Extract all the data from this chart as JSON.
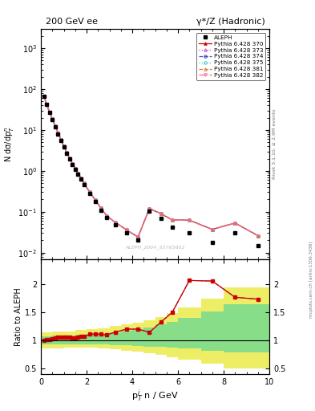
{
  "title_left": "200 GeV ee",
  "title_right": "γ*/Z (Hadronic)",
  "ylabel_main": "N dσ/dp$_T^n$",
  "ylabel_ratio": "Ratio to ALEPH",
  "xlabel": "p$_T^i$ n / GeV",
  "right_label_top": "Rivet 3.1.10, ≥ 2.9M events",
  "right_label_bot": "mcplots.cern.ch [arXiv:1306.3436]",
  "watermark": "ALEPH_2004_S5765862",
  "aleph_x": [
    0.125,
    0.25,
    0.375,
    0.5,
    0.625,
    0.75,
    0.875,
    1.0,
    1.125,
    1.25,
    1.375,
    1.5,
    1.625,
    1.75,
    1.875,
    2.125,
    2.375,
    2.625,
    2.875,
    3.25,
    3.75,
    4.25,
    4.75,
    5.25,
    5.75,
    6.5,
    7.5,
    8.5,
    9.5
  ],
  "aleph_y": [
    68.0,
    42.0,
    27.0,
    18.0,
    12.0,
    8.0,
    5.5,
    3.8,
    2.7,
    1.95,
    1.45,
    1.1,
    0.82,
    0.62,
    0.47,
    0.28,
    0.175,
    0.11,
    0.073,
    0.048,
    0.03,
    0.02,
    0.105,
    0.068,
    0.042,
    0.03,
    0.018,
    0.03,
    0.015
  ],
  "mc_x": [
    0.125,
    0.25,
    0.375,
    0.5,
    0.625,
    0.75,
    0.875,
    1.0,
    1.125,
    1.25,
    1.375,
    1.5,
    1.625,
    1.75,
    1.875,
    2.125,
    2.375,
    2.625,
    2.875,
    3.25,
    3.75,
    4.25,
    4.75,
    5.25,
    5.75,
    6.5,
    7.5,
    8.5,
    9.5
  ],
  "mc_y": [
    68.0,
    42.5,
    27.5,
    18.5,
    12.5,
    8.5,
    5.8,
    4.0,
    2.85,
    2.05,
    1.52,
    1.14,
    0.87,
    0.66,
    0.5,
    0.31,
    0.195,
    0.122,
    0.08,
    0.055,
    0.036,
    0.024,
    0.12,
    0.09,
    0.063,
    0.062,
    0.037,
    0.053,
    0.026
  ],
  "ratio_x": [
    0.125,
    0.25,
    0.375,
    0.5,
    0.625,
    0.75,
    0.875,
    1.0,
    1.125,
    1.25,
    1.375,
    1.5,
    1.625,
    1.75,
    1.875,
    2.125,
    2.375,
    2.625,
    2.875,
    3.25,
    3.75,
    4.25,
    4.75,
    5.25,
    5.75,
    6.5,
    7.5,
    8.5,
    9.5
  ],
  "ratio_y": [
    1.0,
    1.012,
    1.019,
    1.028,
    1.042,
    1.063,
    1.055,
    1.053,
    1.056,
    1.051,
    1.048,
    1.036,
    1.061,
    1.065,
    1.064,
    1.107,
    1.114,
    1.109,
    1.096,
    1.146,
    1.2,
    1.2,
    1.143,
    1.324,
    1.5,
    2.067,
    2.056,
    1.767,
    1.733
  ],
  "band_x_edges": [
    0.0,
    0.5,
    1.0,
    1.5,
    2.0,
    2.5,
    3.0,
    3.5,
    4.0,
    4.5,
    5.0,
    5.5,
    6.0,
    7.0,
    8.0,
    10.0
  ],
  "band_green_lo": [
    0.93,
    0.93,
    0.93,
    0.93,
    0.93,
    0.93,
    0.92,
    0.91,
    0.9,
    0.89,
    0.88,
    0.87,
    0.86,
    0.82,
    0.78,
    0.74
  ],
  "band_green_hi": [
    1.07,
    1.08,
    1.09,
    1.1,
    1.11,
    1.12,
    1.14,
    1.17,
    1.2,
    1.23,
    1.28,
    1.33,
    1.4,
    1.52,
    1.65,
    1.78
  ],
  "band_yellow_lo": [
    0.86,
    0.86,
    0.87,
    0.87,
    0.87,
    0.86,
    0.84,
    0.82,
    0.8,
    0.77,
    0.74,
    0.7,
    0.65,
    0.58,
    0.5,
    0.43
  ],
  "band_yellow_hi": [
    1.14,
    1.15,
    1.16,
    1.18,
    1.2,
    1.22,
    1.25,
    1.28,
    1.32,
    1.36,
    1.42,
    1.48,
    1.58,
    1.75,
    1.95,
    2.1
  ],
  "color_370": "#cc0000",
  "color_373": "#cc44cc",
  "color_374": "#4444cc",
  "color_375": "#44cccc",
  "color_381": "#cc8844",
  "color_382": "#ff6688",
  "xlim": [
    0,
    10
  ],
  "ylim_main": [
    0.007,
    3000
  ],
  "ylim_ratio": [
    0.4,
    2.45
  ],
  "ratio_yticks": [
    0.5,
    1.0,
    1.5,
    2.0
  ],
  "ratio_ytick_labels": [
    "0.5",
    "1",
    "1.5",
    "2"
  ]
}
